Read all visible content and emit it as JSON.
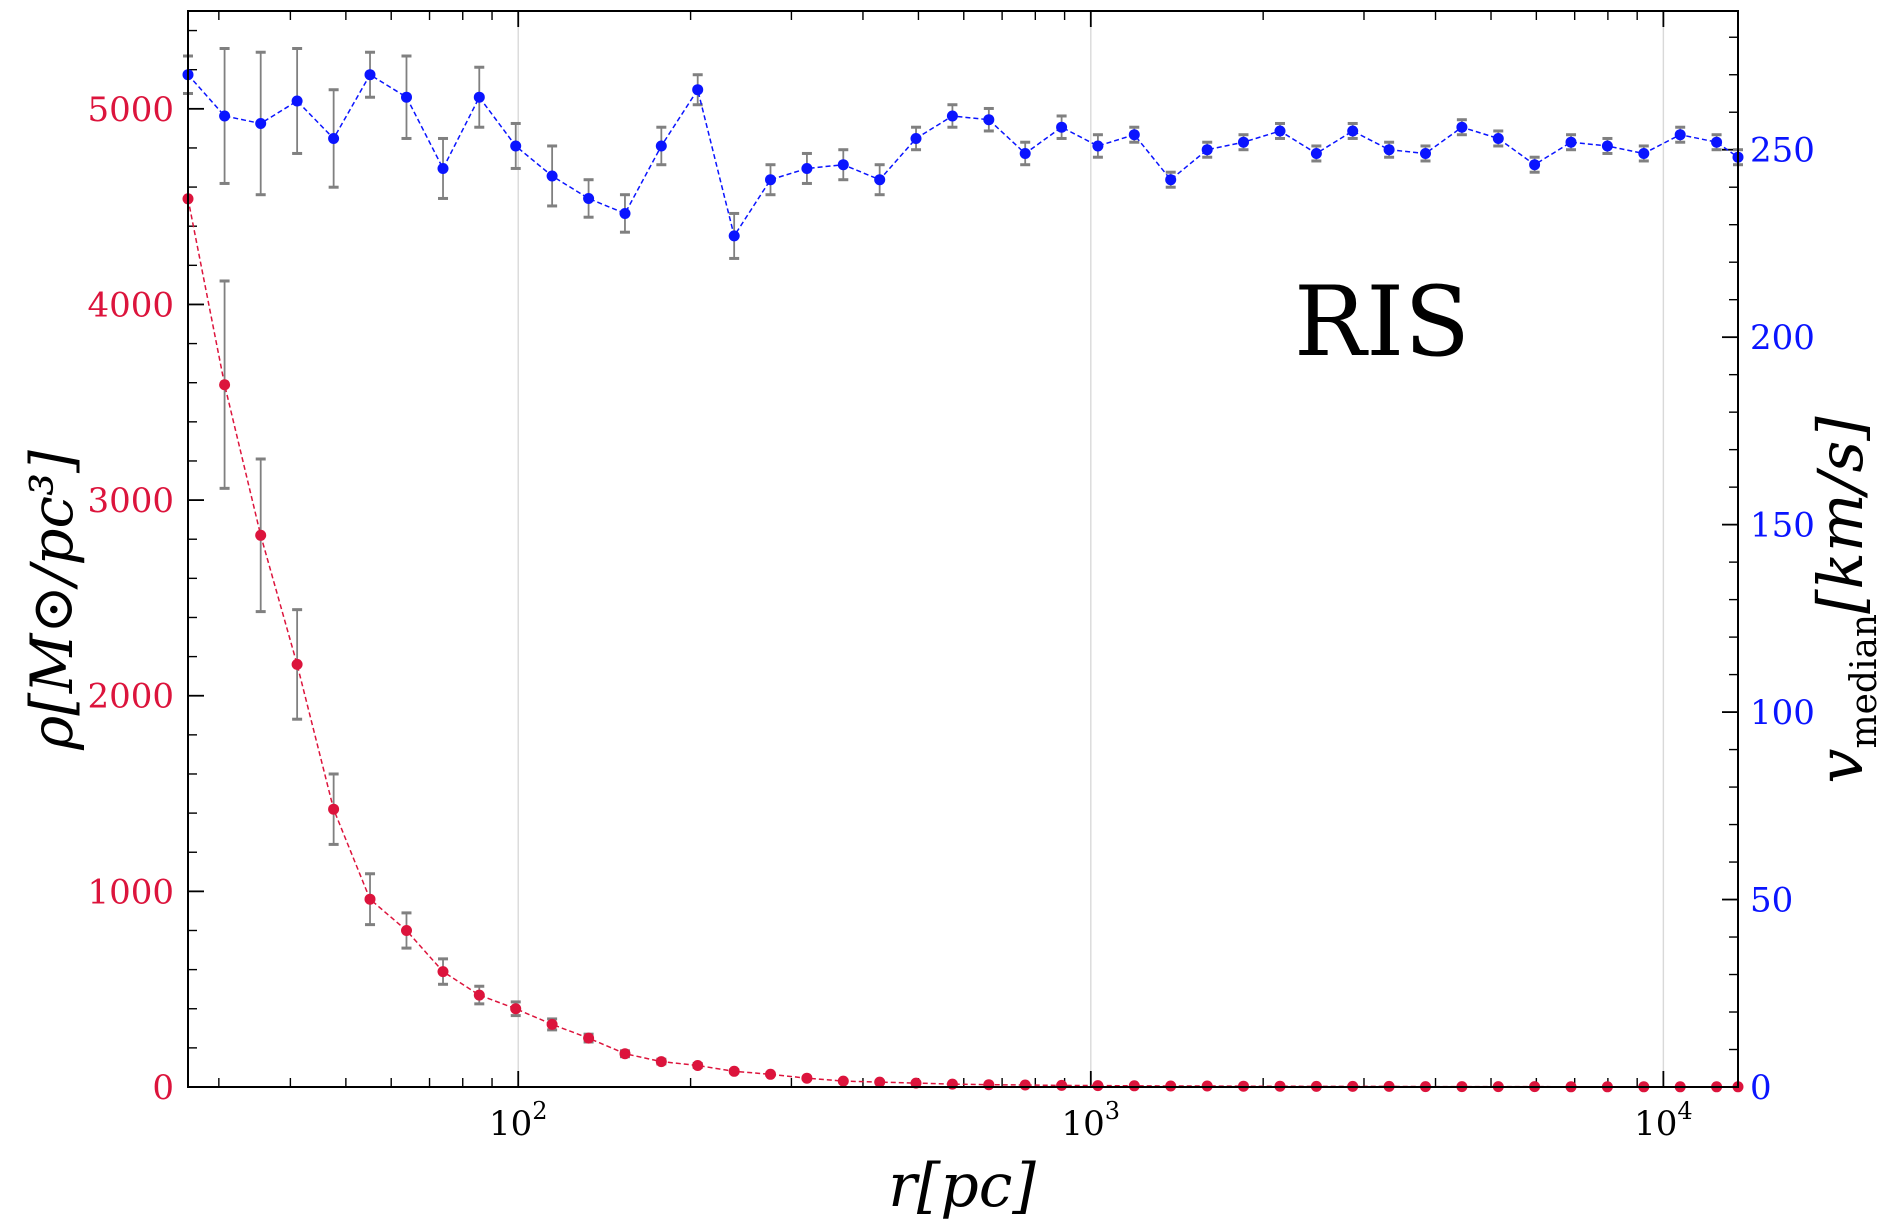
{
  "chart_data": {
    "type": "scatter",
    "annotation": "RIS",
    "colors": {
      "rho": "#dc143c",
      "v": "#0a14ff",
      "errorbar": "#808080",
      "grid": "#d9d9d9",
      "axis": "#000000"
    },
    "x_axis": {
      "label_main": "r",
      "label_unit": "[pc]",
      "scale": "log",
      "range": [
        26.5,
        13500
      ],
      "ticks": [
        {
          "value": 100,
          "base": "10",
          "exp": "2"
        },
        {
          "value": 1000,
          "base": "10",
          "exp": "3"
        },
        {
          "value": 10000,
          "base": "10",
          "exp": "4"
        }
      ],
      "grid": true
    },
    "y_left": {
      "label_main": "ρ",
      "label_unit": "[M⊙/pc³]",
      "range": [
        0,
        5500
      ],
      "ticks": [
        {
          "value": 0,
          "label": "0"
        },
        {
          "value": 1000,
          "label": "1000"
        },
        {
          "value": 2000,
          "label": "2000"
        },
        {
          "value": 3000,
          "label": "3000"
        },
        {
          "value": 4000,
          "label": "4000"
        },
        {
          "value": 5000,
          "label": "5000"
        }
      ]
    },
    "y_right": {
      "label_main": "v",
      "label_sub": "median",
      "label_unit": "[km/s]",
      "range": [
        0,
        287
      ],
      "ticks": [
        {
          "value": 0,
          "label": "0"
        },
        {
          "value": 50,
          "label": "50"
        },
        {
          "value": 100,
          "label": "100"
        },
        {
          "value": 150,
          "label": "150"
        },
        {
          "value": 200,
          "label": "200"
        },
        {
          "value": 250,
          "label": "250"
        }
      ]
    },
    "series": [
      {
        "axis": "left",
        "color_key": "rho",
        "x": [
          26.5,
          30.7,
          35.5,
          41.1,
          47.6,
          55.1,
          63.8,
          73.9,
          85.5,
          99.0,
          114.6,
          132.7,
          153.6,
          177.8,
          205.8,
          238.3,
          275.8,
          319.3,
          369.6,
          427.8,
          495.2,
          573.2,
          663.6,
          768.1,
          889.2,
          1029,
          1191,
          1379,
          1597,
          1848,
          2140,
          2477,
          2867,
          3319,
          3842,
          4447,
          5148,
          5959,
          6898,
          7985,
          9243,
          10700,
          12386,
          13500
        ],
        "y": [
          4540,
          3590,
          2820,
          2160,
          1420,
          960,
          800,
          590,
          470,
          400,
          320,
          250,
          170,
          130,
          110,
          80,
          65,
          45,
          30,
          25,
          20,
          15,
          12,
          10,
          8,
          7,
          6,
          5,
          5,
          4,
          4,
          3,
          3,
          3,
          2,
          2,
          2,
          2,
          1,
          1,
          1,
          1,
          1,
          1
        ],
        "err": [
          0,
          530,
          390,
          280,
          180,
          130,
          90,
          65,
          45,
          35,
          28,
          20,
          15,
          12,
          10,
          8,
          6,
          5,
          4,
          3,
          3,
          2,
          2,
          2,
          1,
          1,
          1,
          1,
          1,
          1,
          1,
          1,
          1,
          1,
          1,
          1,
          1,
          1,
          1,
          1,
          1,
          1,
          1,
          1
        ]
      },
      {
        "axis": "right",
        "color_key": "v",
        "x": [
          26.5,
          30.7,
          35.5,
          41.1,
          47.6,
          55.1,
          63.8,
          73.9,
          85.5,
          99.0,
          114.6,
          132.7,
          153.6,
          177.8,
          205.8,
          238.3,
          275.8,
          319.3,
          369.6,
          427.8,
          495.2,
          573.2,
          663.6,
          768.1,
          889.2,
          1029,
          1191,
          1379,
          1597,
          1848,
          2140,
          2477,
          2867,
          3319,
          3842,
          4447,
          5148,
          5959,
          6898,
          7985,
          9243,
          10700,
          12386,
          13500
        ],
        "y": [
          270,
          259,
          257,
          263,
          253,
          270,
          264,
          245,
          264,
          251,
          243,
          237,
          233,
          251,
          266,
          227,
          242,
          245,
          246,
          242,
          253,
          259,
          258,
          249,
          256,
          251,
          254,
          242,
          250,
          252,
          255,
          249,
          255,
          250,
          249,
          256,
          253,
          246,
          252,
          251,
          249,
          254,
          252,
          248
        ],
        "err": [
          5,
          18,
          19,
          14,
          13,
          6,
          11,
          8,
          8,
          6,
          8,
          5,
          5,
          5,
          4,
          6,
          4,
          4,
          4,
          4,
          3,
          3,
          3,
          3,
          3,
          3,
          2,
          2,
          2,
          2,
          2,
          2,
          2,
          2,
          2,
          2,
          2,
          2,
          2,
          2,
          2,
          2,
          2,
          2
        ]
      }
    ]
  }
}
